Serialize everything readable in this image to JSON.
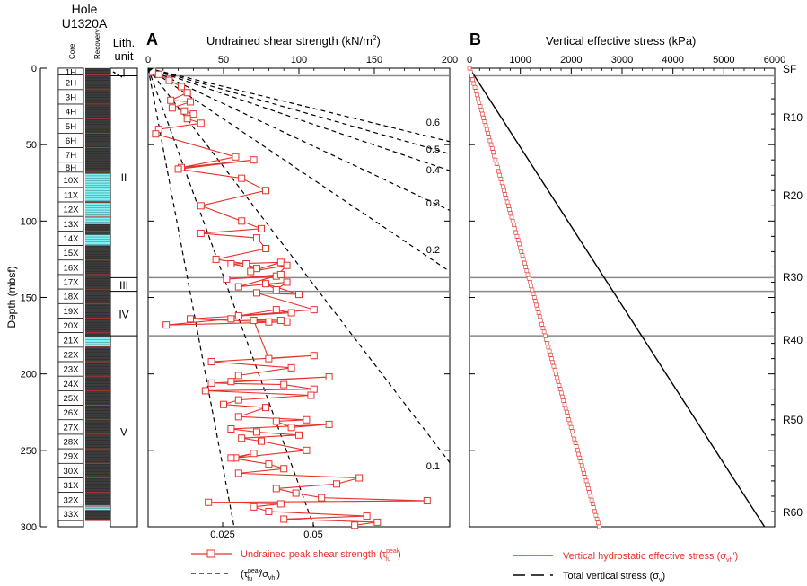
{
  "header": {
    "hole_line1": "Hole",
    "hole_line2": "U1320A",
    "core_col": "Core",
    "recovery_col": "Recovery",
    "lith_line1": "Lith.",
    "lith_line2": "unit"
  },
  "depth_axis": {
    "label": "Depth (mbsf)",
    "ticks": [
      0,
      50,
      100,
      150,
      200,
      250,
      300
    ],
    "range": [
      0,
      300
    ]
  },
  "cores": [
    {
      "label": "1H",
      "top": 0,
      "bottom": 4.5
    },
    {
      "label": "2H",
      "top": 4.5,
      "bottom": 14
    },
    {
      "label": "3H",
      "top": 14,
      "bottom": 23.5
    },
    {
      "label": "4H",
      "top": 23.5,
      "bottom": 33
    },
    {
      "label": "5H",
      "top": 33,
      "bottom": 42.5
    },
    {
      "label": "6H",
      "top": 42.5,
      "bottom": 52
    },
    {
      "label": "7H",
      "top": 52,
      "bottom": 61.5
    },
    {
      "label": "8H",
      "top": 61.5,
      "bottom": 68
    },
    {
      "label": "10X",
      "top": 68,
      "bottom": 78
    },
    {
      "label": "11X",
      "top": 78,
      "bottom": 87.5
    },
    {
      "label": "12X",
      "top": 87.5,
      "bottom": 97
    },
    {
      "label": "13X",
      "top": 97,
      "bottom": 106.5
    },
    {
      "label": "14X",
      "top": 106.5,
      "bottom": 116
    },
    {
      "label": "15X",
      "top": 116,
      "bottom": 125.5
    },
    {
      "label": "16X",
      "top": 125.5,
      "bottom": 135
    },
    {
      "label": "17X",
      "top": 135,
      "bottom": 144.5
    },
    {
      "label": "18X",
      "top": 144.5,
      "bottom": 154
    },
    {
      "label": "19X",
      "top": 154,
      "bottom": 163.5
    },
    {
      "label": "20X",
      "top": 163.5,
      "bottom": 173
    },
    {
      "label": "21X",
      "top": 173,
      "bottom": 182.5
    },
    {
      "label": "22X",
      "top": 182.5,
      "bottom": 192
    },
    {
      "label": "23X",
      "top": 192,
      "bottom": 201.5
    },
    {
      "label": "24X",
      "top": 201.5,
      "bottom": 211
    },
    {
      "label": "25X",
      "top": 211,
      "bottom": 220.5
    },
    {
      "label": "26X",
      "top": 220.5,
      "bottom": 230
    },
    {
      "label": "27X",
      "top": 230,
      "bottom": 239.5
    },
    {
      "label": "28X",
      "top": 239.5,
      "bottom": 249
    },
    {
      "label": "29X",
      "top": 249,
      "bottom": 258.5
    },
    {
      "label": "30X",
      "top": 258.5,
      "bottom": 268
    },
    {
      "label": "31X",
      "top": 268,
      "bottom": 277.5
    },
    {
      "label": "32X",
      "top": 277.5,
      "bottom": 287
    },
    {
      "label": "33X",
      "top": 287,
      "bottom": 296
    }
  ],
  "recovery_cyan_intervals": [
    [
      69,
      87
    ],
    [
      88,
      102
    ],
    [
      109,
      116
    ],
    [
      176,
      182
    ],
    [
      286,
      289
    ]
  ],
  "lith_units": [
    {
      "label": "I",
      "top": 0,
      "bottom": 5
    },
    {
      "label": "II",
      "top": 5,
      "bottom": 137
    },
    {
      "label": "III",
      "top": 137,
      "bottom": 146
    },
    {
      "label": "IV",
      "top": 146,
      "bottom": 175
    },
    {
      "label": "V",
      "top": 175,
      "bottom": 300
    }
  ],
  "boundaries": [
    5,
    137,
    146,
    175
  ],
  "panel_a": {
    "letter": "A",
    "title": "Undrained shear strength (kN/m",
    "title_sup": "2",
    "title_end": ")",
    "top_ticks": [
      0,
      50,
      100,
      150,
      200
    ],
    "bottom_ticks": [
      "0.025",
      "0.05"
    ],
    "ratio_labels": [
      "0.6",
      "0.5",
      "0.4",
      "0.3",
      "0.2",
      "0.1"
    ],
    "legend": {
      "red": "Undrained peak shear strength (τ",
      "red_sup": "peak",
      "red_sub": "fu",
      "red_end": ")",
      "black_open": "(τ",
      "black_sup": "peak",
      "black_sub": "fu",
      "black_mid": "/σ",
      "black_sub2": "vh",
      "black_end": "′)"
    }
  },
  "panel_b": {
    "letter": "B",
    "title": "Vertical effective stress (kPa)",
    "top_ticks": [
      0,
      1000,
      2000,
      3000,
      4000,
      5000,
      6000
    ],
    "legend": {
      "red": "Vertical hydrostatic effective stress (σ",
      "red_sub": "vh",
      "red_end": "′)",
      "black": "Total vertical stress (σ",
      "black_sub": "v",
      "black_end": ")"
    }
  },
  "reflectors": [
    "SF",
    "R10",
    "R20",
    "R30",
    "R40",
    "R50",
    "R60"
  ],
  "colors": {
    "shear": "#e8312a",
    "cyan": "#7ff2f5",
    "core_dark": "#3d3d3d",
    "boundary": "#888888"
  },
  "chart_data": [
    {
      "type": "line",
      "title": "Undrained shear strength (kN/m2)",
      "xlabel": "Undrained shear strength (kN/m2)",
      "ylabel": "Depth (mbsf)",
      "xlim": [
        0,
        200
      ],
      "ylim": [
        300,
        0
      ],
      "series": [
        {
          "name": "Undrained peak shear strength (τfu peak)",
          "x": [
            3,
            7,
            14,
            22,
            26,
            15,
            28,
            16,
            24,
            30,
            26,
            35,
            7,
            5,
            58,
            22,
            70,
            20,
            62,
            78,
            35,
            62,
            75,
            35,
            72,
            78,
            45,
            65,
            72,
            55,
            88,
            68,
            92,
            85,
            52,
            88,
            60,
            92,
            85,
            78,
            100,
            72,
            110,
            60,
            85,
            95,
            28,
            80,
            92,
            12,
            55,
            88,
            70,
            80,
            110,
            42,
            95,
            60,
            55,
            120,
            42,
            90,
            110,
            38,
            108,
            60,
            50,
            78,
            60,
            105,
            85,
            95,
            120,
            55,
            72,
            100,
            62,
            75,
            105,
            58,
            70,
            55,
            80,
            90,
            60,
            140,
            125,
            85,
            98,
            115,
            185,
            40,
            88,
            70,
            80,
            145,
            90,
            152,
            137
          ],
          "y": [
            2,
            4,
            8,
            12,
            16,
            21,
            22,
            26,
            28,
            30,
            33,
            36,
            40,
            43,
            58,
            65,
            60,
            66,
            72,
            80,
            90,
            100,
            105,
            108,
            111,
            118,
            125,
            128,
            131,
            128,
            127,
            133,
            129,
            136,
            138,
            135,
            143,
            140,
            145,
            141,
            148,
            147,
            158,
            162,
            158,
            160,
            164,
            166,
            166,
            168,
            164,
            165,
            165,
            190,
            188,
            192,
            196,
            201,
            205,
            202,
            206,
            207,
            210,
            211,
            214,
            217,
            220,
            222,
            228,
            230,
            231,
            235,
            233,
            236,
            238,
            240,
            242,
            244,
            250,
            255,
            252,
            255,
            259,
            262,
            265,
            268,
            272,
            275,
            278,
            281,
            283,
            284,
            285,
            287,
            290,
            293,
            295,
            297,
            299
          ]
        },
        {
          "name": "0.6 (τfu peak/σvh′)",
          "x": [
            0,
            200
          ],
          "y": [
            0,
            48
          ]
        },
        {
          "name": "0.5",
          "x": [
            0,
            200
          ],
          "y": [
            0,
            56
          ]
        },
        {
          "name": "0.4",
          "x": [
            0,
            200
          ],
          "y": [
            0,
            67
          ]
        },
        {
          "name": "0.3",
          "x": [
            0,
            200
          ],
          "y": [
            0,
            93
          ]
        },
        {
          "name": "0.2",
          "x": [
            0,
            200
          ],
          "y": [
            0,
            133
          ]
        },
        {
          "name": "0.1",
          "x": [
            0,
            200
          ],
          "y": [
            0,
            258
          ]
        },
        {
          "name": "0.05",
          "x": [
            0,
            110
          ],
          "y": [
            0,
            300
          ]
        },
        {
          "name": "0.025",
          "x": [
            0,
            57
          ],
          "y": [
            0,
            300
          ]
        }
      ]
    },
    {
      "type": "line",
      "title": "Vertical effective stress (kPa)",
      "xlabel": "Vertical effective stress (kPa)",
      "ylabel": "Depth (mbsf)",
      "xlim": [
        0,
        6000
      ],
      "ylim": [
        300,
        0
      ],
      "series": [
        {
          "name": "Vertical hydrostatic effective stress (σvh′)",
          "x": [
            0,
            2550
          ],
          "y": [
            0,
            300
          ]
        },
        {
          "name": "Total vertical stress (σv)",
          "x": [
            0,
            5800
          ],
          "y": [
            0,
            300
          ]
        }
      ]
    }
  ]
}
